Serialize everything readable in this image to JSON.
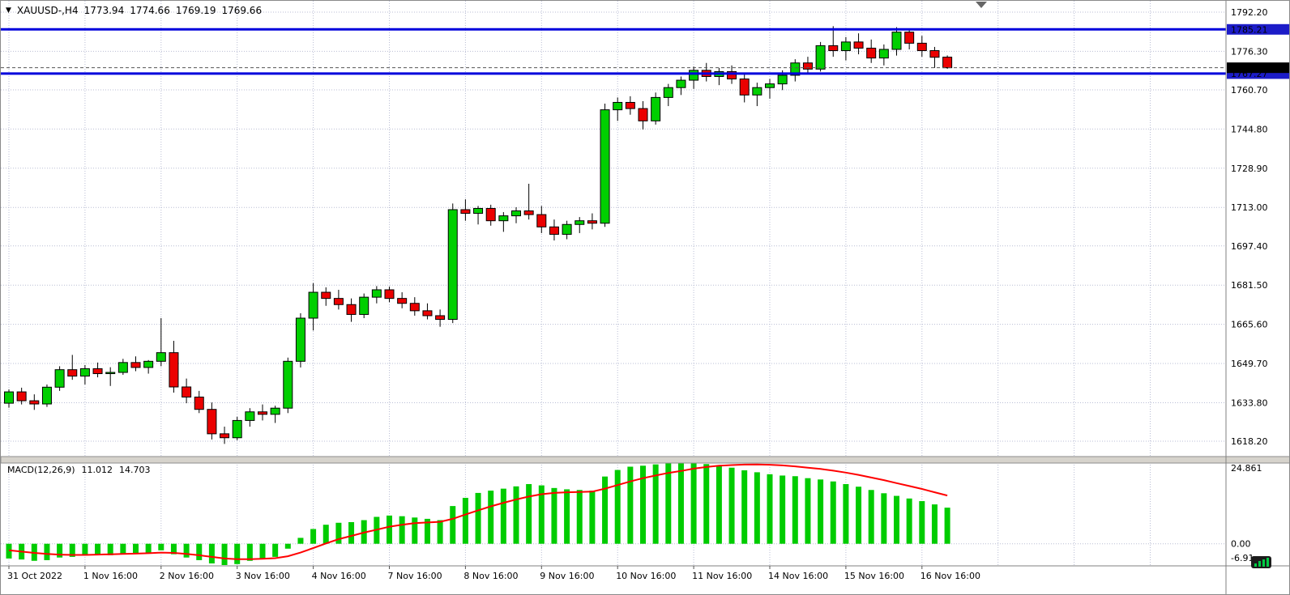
{
  "window": {
    "symbol_period": "XAUUSD-,H4",
    "ohlc": {
      "open": "1773.94",
      "high": "1774.66",
      "low": "1769.19",
      "close": "1769.66"
    }
  },
  "colors": {
    "background": "#FFFFFF",
    "grid": "#B9BDD4",
    "candle_up": "#00CF00",
    "candle_down": "#EB0000",
    "candle_outline": "#000000",
    "hline": "#0000DC",
    "hline_badge": "#1C1CC8",
    "current_badge": "#000000",
    "macd_bar": "#00CC00",
    "macd_signal": "#FF0000",
    "axis_text": "#000000",
    "splitter": "#D6D3CC"
  },
  "chart_data": {
    "type": "candlestick",
    "title": "XAUUSD-,H4 candlestick chart with MACD",
    "symbol": "XAUUSD-,H4",
    "price_axis_ticks": [
      {
        "label": "1792.20",
        "value": 1792.2
      },
      {
        "label": "1776.30",
        "value": 1776.3
      },
      {
        "label": "1760.70",
        "value": 1760.7
      },
      {
        "label": "1744.80",
        "value": 1744.8
      },
      {
        "label": "1728.90",
        "value": 1728.9
      },
      {
        "label": "1713.00",
        "value": 1713.0
      },
      {
        "label": "1697.40",
        "value": 1697.4
      },
      {
        "label": "1681.50",
        "value": 1681.5
      },
      {
        "label": "1665.60",
        "value": 1665.6
      },
      {
        "label": "1649.70",
        "value": 1649.7
      },
      {
        "label": "1633.80",
        "value": 1633.8
      },
      {
        "label": "1618.20",
        "value": 1618.2
      }
    ],
    "hlines": [
      {
        "price": 1785.21,
        "label": "1785.21"
      },
      {
        "price": 1767.27,
        "label": "1767.27"
      }
    ],
    "current_price": {
      "price": 1769.66,
      "label": "1769.66"
    },
    "x_labels": [
      {
        "label": "31 Oct 2022",
        "index": 0
      },
      {
        "label": "1 Nov 16:00",
        "index": 6
      },
      {
        "label": "2 Nov 16:00",
        "index": 12
      },
      {
        "label": "3 Nov 16:00",
        "index": 18
      },
      {
        "label": "4 Nov 16:00",
        "index": 24
      },
      {
        "label": "7 Nov 16:00",
        "index": 30
      },
      {
        "label": "8 Nov 16:00",
        "index": 36
      },
      {
        "label": "9 Nov 16:00",
        "index": 42
      },
      {
        "label": "10 Nov 16:00",
        "index": 48
      },
      {
        "label": "11 Nov 16:00",
        "index": 54
      },
      {
        "label": "14 Nov 16:00",
        "index": 60
      },
      {
        "label": "15 Nov 16:00",
        "index": 66
      },
      {
        "label": "16 Nov 16:00",
        "index": 72
      }
    ],
    "candles": [
      [
        1633.6,
        1639.2,
        1631.8,
        1638.2
      ],
      [
        1638.2,
        1639.9,
        1633.1,
        1634.6
      ],
      [
        1634.6,
        1637.2,
        1630.9,
        1633.3
      ],
      [
        1633.3,
        1641.2,
        1632.1,
        1640.1
      ],
      [
        1640.1,
        1648.6,
        1638.6,
        1647.2
      ],
      [
        1647.2,
        1653.2,
        1643.1,
        1644.6
      ],
      [
        1644.6,
        1649.1,
        1641.2,
        1647.6
      ],
      [
        1647.6,
        1650.1,
        1644.1,
        1645.6
      ],
      [
        1645.6,
        1648.2,
        1640.6,
        1646.1
      ],
      [
        1646.1,
        1651.6,
        1645.1,
        1650.1
      ],
      [
        1650.1,
        1652.6,
        1646.6,
        1648.1
      ],
      [
        1648.1,
        1651.1,
        1645.6,
        1650.6
      ],
      [
        1650.6,
        1668.1,
        1648.6,
        1654.1
      ],
      [
        1654.1,
        1658.9,
        1637.9,
        1640.2
      ],
      [
        1640.2,
        1643.6,
        1633.6,
        1636.1
      ],
      [
        1636.1,
        1638.6,
        1629.6,
        1631.1
      ],
      [
        1631.1,
        1633.9,
        1618.9,
        1621.2
      ],
      [
        1621.2,
        1624.1,
        1617.1,
        1619.6
      ],
      [
        1619.6,
        1628.1,
        1618.6,
        1626.6
      ],
      [
        1626.6,
        1631.6,
        1624.1,
        1630.1
      ],
      [
        1630.1,
        1633.1,
        1626.6,
        1629.1
      ],
      [
        1629.1,
        1632.6,
        1625.6,
        1631.6
      ],
      [
        1631.6,
        1652.1,
        1629.6,
        1650.6
      ],
      [
        1650.6,
        1670.1,
        1648.1,
        1668.1
      ],
      [
        1668.1,
        1682.3,
        1663.1,
        1678.6
      ],
      [
        1678.6,
        1680.6,
        1673.1,
        1676.1
      ],
      [
        1676.1,
        1679.6,
        1671.6,
        1673.6
      ],
      [
        1673.6,
        1676.1,
        1666.6,
        1669.6
      ],
      [
        1669.6,
        1678.1,
        1668.1,
        1676.6
      ],
      [
        1676.6,
        1681.1,
        1674.1,
        1679.6
      ],
      [
        1679.6,
        1680.9,
        1674.6,
        1676.1
      ],
      [
        1676.1,
        1678.6,
        1672.1,
        1674.1
      ],
      [
        1674.1,
        1676.6,
        1669.1,
        1671.1
      ],
      [
        1671.1,
        1674.1,
        1667.6,
        1669.1
      ],
      [
        1669.1,
        1671.6,
        1664.6,
        1667.6
      ],
      [
        1667.6,
        1714.6,
        1666.1,
        1712.1
      ],
      [
        1712.1,
        1716.3,
        1707.6,
        1710.6
      ],
      [
        1710.6,
        1713.6,
        1706.1,
        1712.6
      ],
      [
        1712.6,
        1714.1,
        1705.6,
        1707.6
      ],
      [
        1707.6,
        1711.1,
        1703.1,
        1709.6
      ],
      [
        1709.6,
        1713.1,
        1706.6,
        1711.6
      ],
      [
        1711.6,
        1722.6,
        1708.1,
        1710.1
      ],
      [
        1710.1,
        1713.6,
        1702.6,
        1705.1
      ],
      [
        1705.1,
        1708.1,
        1699.6,
        1702.1
      ],
      [
        1702.1,
        1707.6,
        1700.1,
        1706.1
      ],
      [
        1706.1,
        1709.1,
        1702.6,
        1707.6
      ],
      [
        1707.6,
        1710.6,
        1704.1,
        1706.6
      ],
      [
        1706.6,
        1755.1,
        1705.1,
        1752.6
      ],
      [
        1752.6,
        1757.6,
        1748.1,
        1755.6
      ],
      [
        1755.6,
        1758.1,
        1750.6,
        1753.1
      ],
      [
        1753.1,
        1756.1,
        1744.6,
        1748.1
      ],
      [
        1748.1,
        1759.6,
        1746.6,
        1757.6
      ],
      [
        1757.6,
        1763.1,
        1754.1,
        1761.6
      ],
      [
        1761.6,
        1766.1,
        1758.6,
        1764.6
      ],
      [
        1764.6,
        1770.1,
        1761.1,
        1768.6
      ],
      [
        1768.6,
        1771.6,
        1764.1,
        1766.1
      ],
      [
        1766.1,
        1769.6,
        1762.6,
        1768.1
      ],
      [
        1768.1,
        1770.6,
        1763.1,
        1765.1
      ],
      [
        1765.1,
        1767.1,
        1755.6,
        1758.6
      ],
      [
        1758.6,
        1763.6,
        1754.1,
        1761.6
      ],
      [
        1761.6,
        1765.1,
        1757.1,
        1763.1
      ],
      [
        1763.1,
        1768.6,
        1760.6,
        1766.6
      ],
      [
        1766.6,
        1773.1,
        1764.1,
        1771.6
      ],
      [
        1771.6,
        1774.1,
        1767.6,
        1769.1
      ],
      [
        1769.1,
        1780.1,
        1768.1,
        1778.6
      ],
      [
        1778.6,
        1786.5,
        1774.1,
        1776.6
      ],
      [
        1776.6,
        1782.1,
        1772.6,
        1780.1
      ],
      [
        1780.1,
        1783.6,
        1775.1,
        1777.6
      ],
      [
        1777.6,
        1781.1,
        1771.6,
        1773.6
      ],
      [
        1773.6,
        1779.1,
        1770.6,
        1777.1
      ],
      [
        1777.1,
        1786.1,
        1774.6,
        1784.1
      ],
      [
        1784.1,
        1785.6,
        1777.1,
        1779.6
      ],
      [
        1779.6,
        1782.6,
        1774.1,
        1776.6
      ],
      [
        1776.6,
        1778.1,
        1769.6,
        1773.9
      ],
      [
        1773.94,
        1774.66,
        1769.19,
        1769.66
      ]
    ],
    "macd": {
      "title": "MACD(12,26,9)",
      "main_value": "11.012",
      "signal_value": "14.703",
      "axis_ticks": [
        {
          "label": "24.861",
          "value": 24.861
        },
        {
          "label": "0.00",
          "value": 0
        },
        {
          "label": "-6.91",
          "value": -6.91
        }
      ],
      "histogram": [
        -4.5,
        -4.8,
        -5.2,
        -5.0,
        -4.2,
        -4.0,
        -3.6,
        -3.4,
        -3.5,
        -3.2,
        -3.0,
        -2.8,
        -2.0,
        -3.2,
        -4.2,
        -5.0,
        -6.0,
        -6.91,
        -6.2,
        -5.2,
        -4.6,
        -4.0,
        -1.5,
        1.8,
        4.5,
        5.8,
        6.4,
        6.6,
        7.2,
        8.2,
        8.6,
        8.4,
        8.0,
        7.6,
        7.2,
        11.5,
        14.0,
        15.5,
        16.2,
        16.8,
        17.5,
        18.2,
        17.8,
        17.0,
        16.6,
        16.4,
        16.2,
        20.5,
        22.5,
        23.5,
        23.8,
        24.2,
        24.6,
        24.861,
        24.7,
        24.3,
        23.8,
        23.2,
        22.4,
        21.8,
        21.2,
        20.8,
        20.6,
        20.0,
        19.6,
        19.0,
        18.2,
        17.4,
        16.4,
        15.4,
        14.6,
        13.8,
        13.0,
        12.0,
        11.012
      ],
      "signal": [
        -2.0,
        -2.4,
        -2.8,
        -3.1,
        -3.3,
        -3.4,
        -3.4,
        -3.3,
        -3.2,
        -3.1,
        -3.0,
        -2.9,
        -2.7,
        -2.8,
        -3.1,
        -3.5,
        -4.0,
        -4.5,
        -4.7,
        -4.7,
        -4.6,
        -4.4,
        -3.8,
        -2.7,
        -1.3,
        0.1,
        1.4,
        2.4,
        3.4,
        4.3,
        5.2,
        5.8,
        6.3,
        6.5,
        6.7,
        7.6,
        8.9,
        10.2,
        11.4,
        12.5,
        13.5,
        14.4,
        15.1,
        15.5,
        15.7,
        15.8,
        15.9,
        16.8,
        17.9,
        19.0,
        20.0,
        20.8,
        21.6,
        22.2,
        22.9,
        23.4,
        23.8,
        24.0,
        24.15,
        24.2,
        24.1,
        23.9,
        23.6,
        23.2,
        22.8,
        22.3,
        21.7,
        21.0,
        20.2,
        19.4,
        18.5,
        17.6,
        16.7,
        15.7,
        14.703
      ]
    }
  }
}
